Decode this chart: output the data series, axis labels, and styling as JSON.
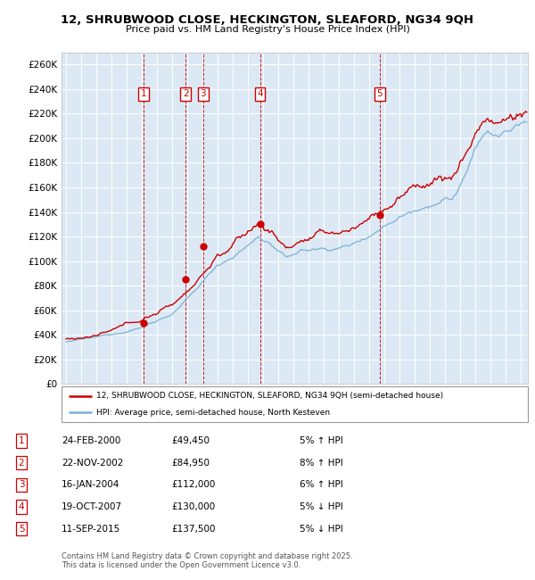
{
  "title": "12, SHRUBWOOD CLOSE, HECKINGTON, SLEAFORD, NG34 9QH",
  "subtitle": "Price paid vs. HM Land Registry's House Price Index (HPI)",
  "ylim": [
    0,
    270000
  ],
  "yticks": [
    0,
    20000,
    40000,
    60000,
    80000,
    100000,
    120000,
    140000,
    160000,
    180000,
    200000,
    220000,
    240000,
    260000
  ],
  "xlim_start": 1994.7,
  "xlim_end": 2025.5,
  "bg_color": "#dce9f5",
  "grid_color": "#ffffff",
  "transactions": [
    {
      "num": 1,
      "year": 2000.14,
      "price": 49450
    },
    {
      "num": 2,
      "year": 2002.89,
      "price": 84950
    },
    {
      "num": 3,
      "year": 2004.04,
      "price": 112000
    },
    {
      "num": 4,
      "year": 2007.8,
      "price": 130000
    },
    {
      "num": 5,
      "year": 2015.7,
      "price": 137500
    }
  ],
  "legend_line1": "12, SHRUBWOOD CLOSE, HECKINGTON, SLEAFORD, NG34 9QH (semi-detached house)",
  "legend_line2": "HPI: Average price, semi-detached house, North Kesteven",
  "footer1": "Contains HM Land Registry data © Crown copyright and database right 2025.",
  "footer2": "This data is licensed under the Open Government Licence v3.0.",
  "property_color": "#cc0000",
  "hpi_color": "#7ab0d4",
  "marker_color": "#cc0000",
  "vline_color": "#cc0000",
  "table_rows": [
    [
      1,
      "24-FEB-2000",
      "£49,450",
      "5% ↑ HPI"
    ],
    [
      2,
      "22-NOV-2002",
      "£84,950",
      "8% ↑ HPI"
    ],
    [
      3,
      "16-JAN-2004",
      "£112,000",
      "6% ↑ HPI"
    ],
    [
      4,
      "19-OCT-2007",
      "£130,000",
      "5% ↓ HPI"
    ],
    [
      5,
      "11-SEP-2015",
      "£137,500",
      "5% ↓ HPI"
    ]
  ]
}
